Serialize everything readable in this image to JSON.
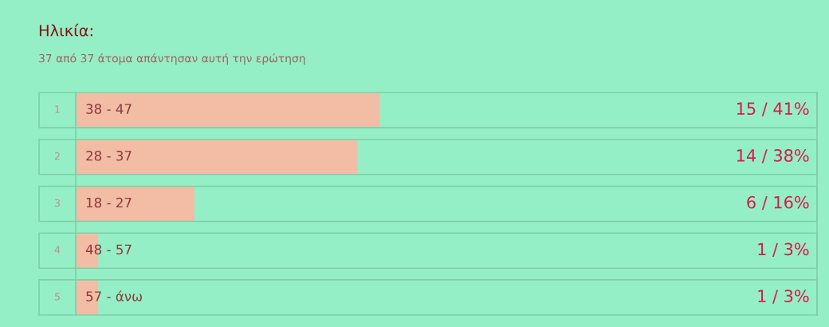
{
  "chart_data": {
    "type": "bar",
    "orientation": "horizontal",
    "title": "Ηλικία:",
    "subtitle": "37 από 37 άτομα απάντησαν αυτή την ερώτηση",
    "categories": [
      "38 - 47",
      "28 - 37",
      "18 - 27",
      "48 - 57",
      "57 - άνω"
    ],
    "values": [
      41,
      38,
      16,
      3,
      3
    ],
    "value_labels": [
      "15 / 41%",
      "14 / 38%",
      "6 / 16%",
      "1 / 3%",
      "1 / 3%"
    ],
    "color": "#f2bda4",
    "xlim": [
      0,
      100
    ],
    "annotations": [
      "1",
      "2",
      "3",
      "4",
      "5"
    ]
  }
}
